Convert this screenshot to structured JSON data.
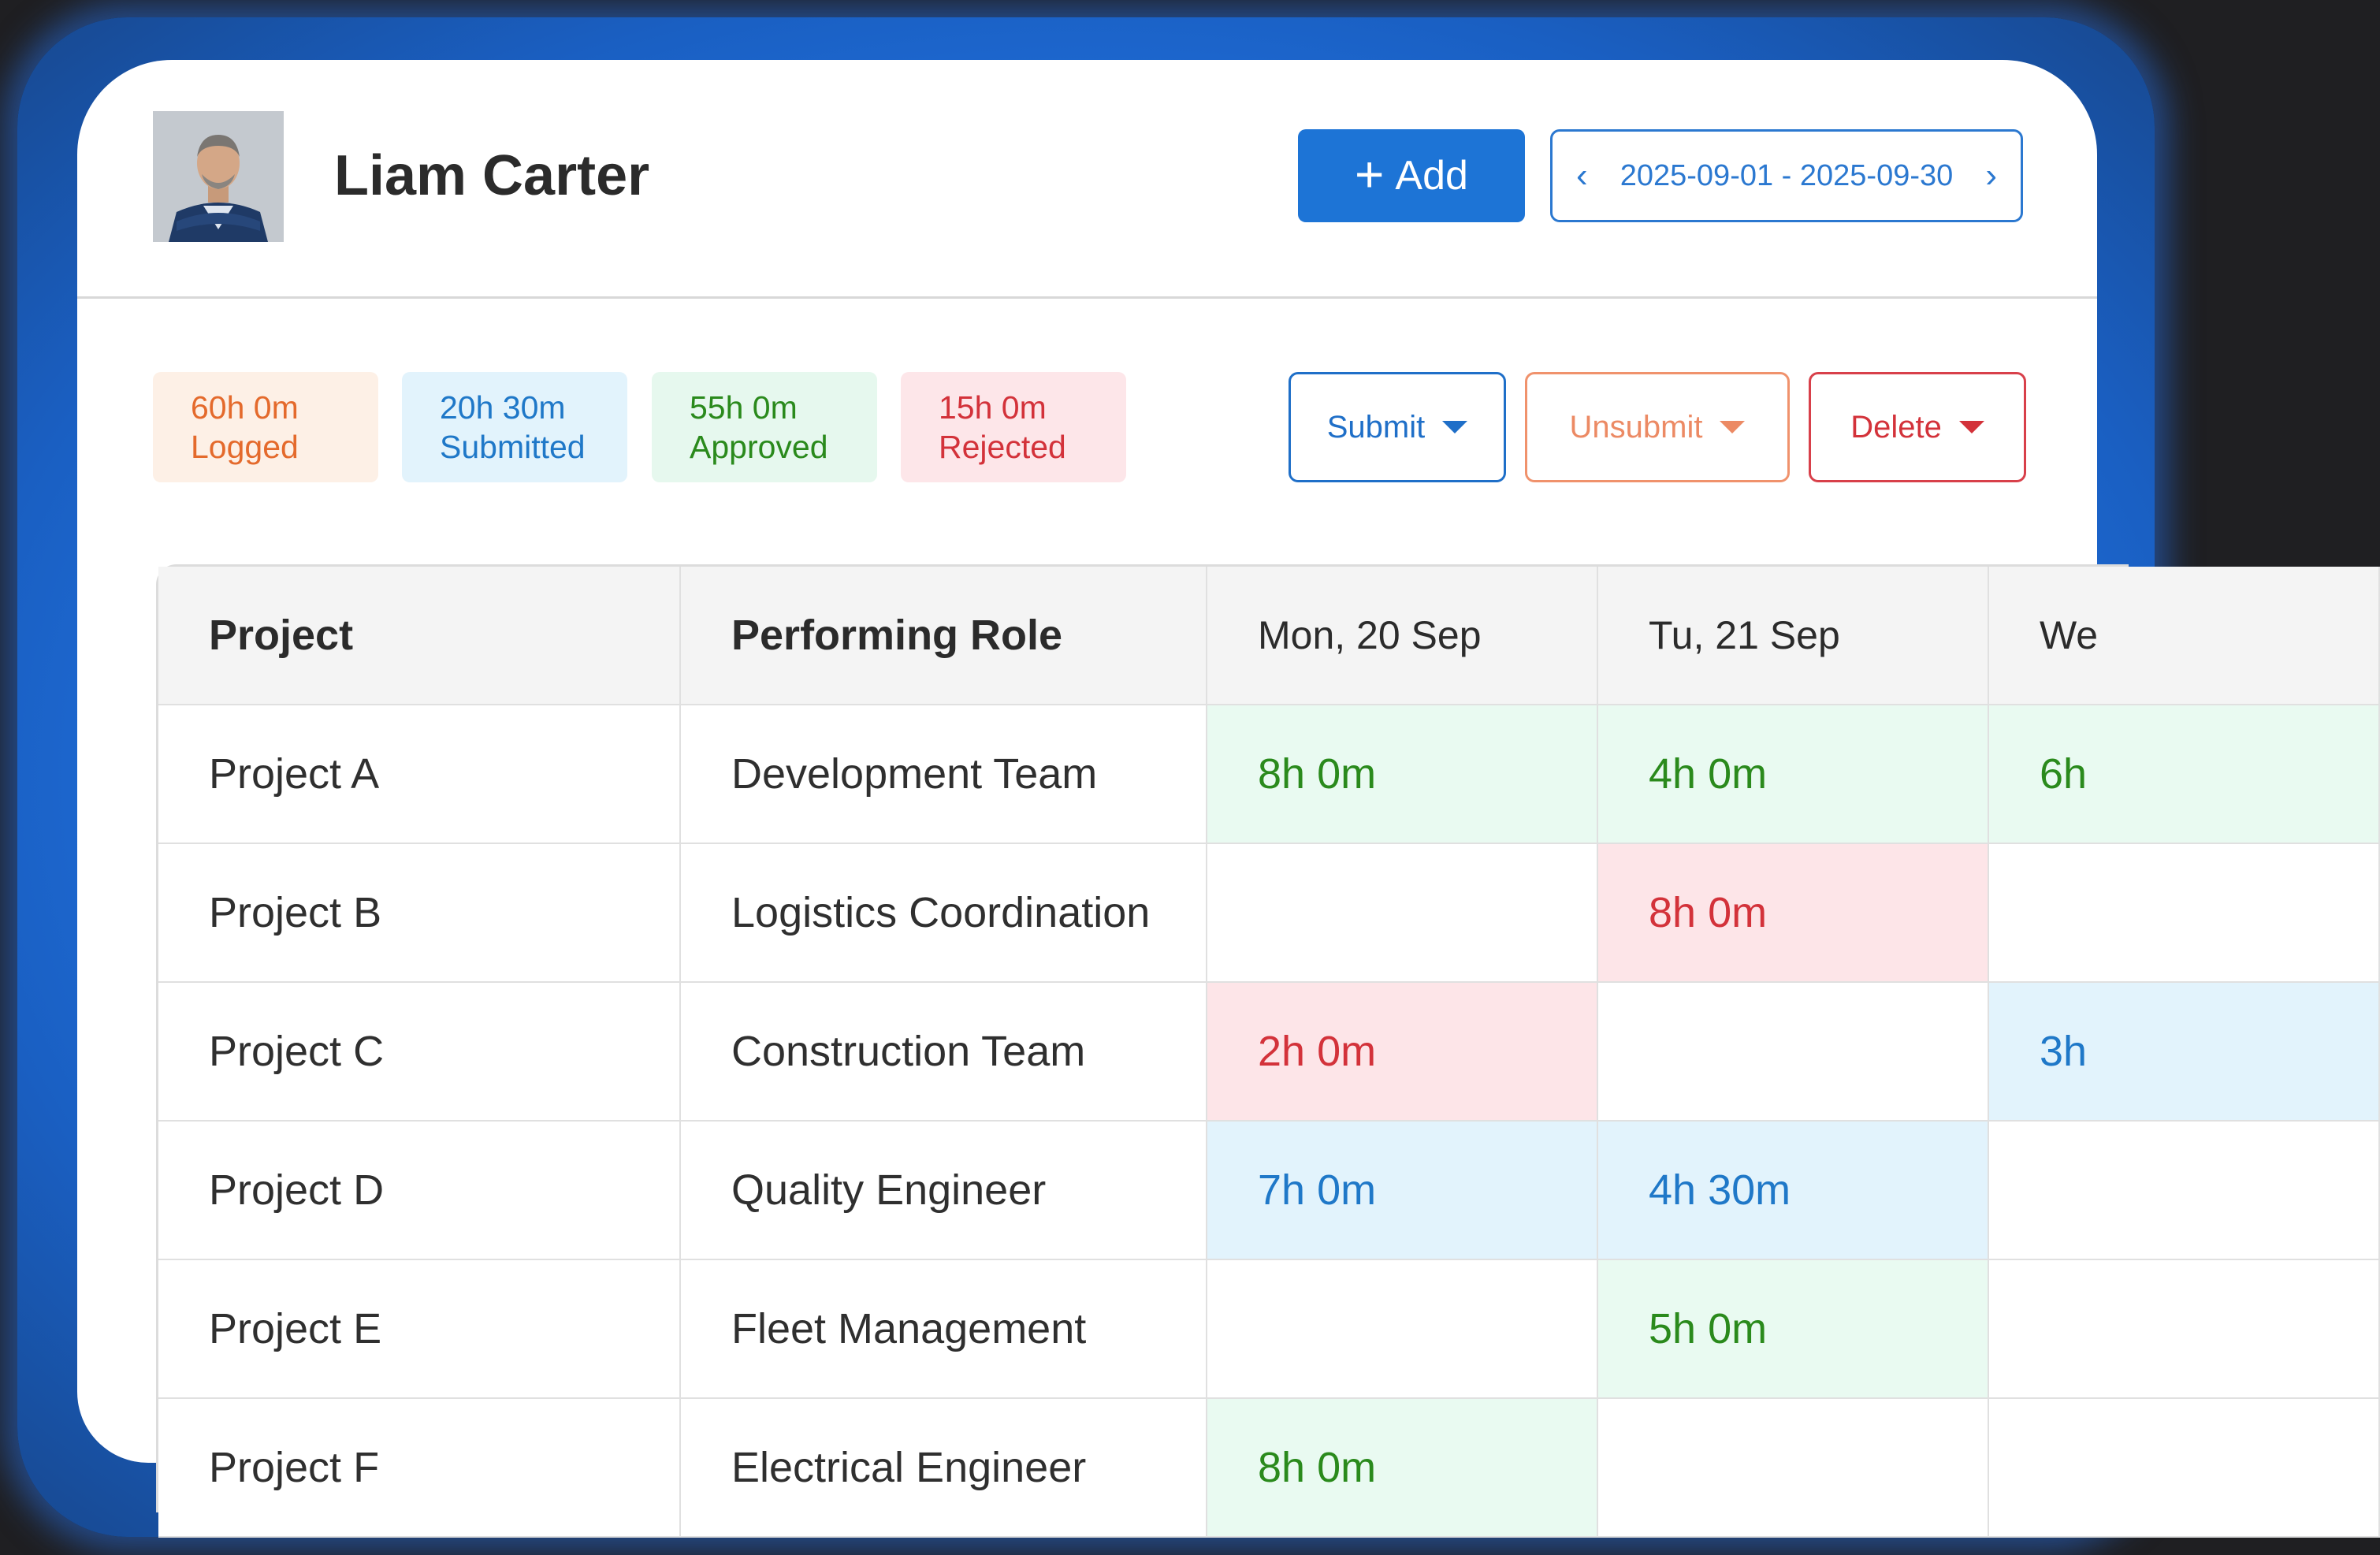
{
  "user": {
    "name": "Liam Carter"
  },
  "header": {
    "add_label": "Add",
    "date_range": "2025-09-01 - 2025-09-30"
  },
  "stats": [
    {
      "value": "60h 0m",
      "label": "Logged"
    },
    {
      "value": "20h 30m",
      "label": "Submitted"
    },
    {
      "value": "55h 0m",
      "label": "Approved"
    },
    {
      "value": "15h 0m",
      "label": "Rejected"
    }
  ],
  "actions": {
    "submit": "Submit",
    "unsubmit": "Unsubmit",
    "delete": "Delete"
  },
  "table": {
    "columns": [
      "Project",
      "Performing Role",
      "Mon, 20 Sep",
      "Tu, 21 Sep",
      "We"
    ],
    "rows": [
      {
        "project": "Project A",
        "role": "Development Team",
        "mon": "8h 0m",
        "tue": "4h 0m",
        "wed": "6h"
      },
      {
        "project": "Project B",
        "role": "Logistics Coordination",
        "mon": "",
        "tue": "8h 0m",
        "wed": ""
      },
      {
        "project": "Project C",
        "role": "Construction Team",
        "mon": "2h 0m",
        "tue": "",
        "wed": "3h"
      },
      {
        "project": "Project D",
        "role": "Quality Engineer",
        "mon": "7h 0m",
        "tue": "4h 30m",
        "wed": ""
      },
      {
        "project": "Project E",
        "role": "Fleet Management",
        "mon": "",
        "tue": "5h 0m",
        "wed": ""
      },
      {
        "project": "Project F",
        "role": "Electrical Engineer",
        "mon": "8h 0m",
        "tue": "",
        "wed": ""
      }
    ]
  },
  "status_colors": {
    "approved": "#2a8a1c",
    "rejected": "#d3323a",
    "submitted": "#1f78c8",
    "logged": "#e46a2c"
  }
}
